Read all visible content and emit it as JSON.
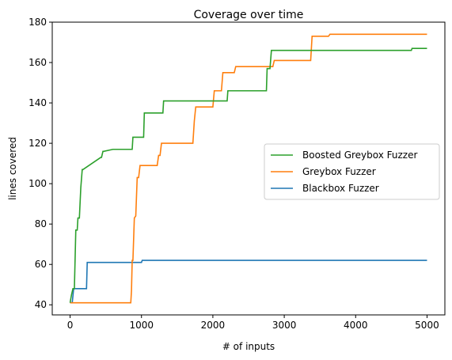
{
  "chart_data": {
    "type": "line",
    "title": "Coverage over time",
    "xlabel": "# of inputs",
    "ylabel": "lines covered",
    "xlim": [
      -250,
      5250
    ],
    "ylim": [
      35,
      180
    ],
    "xticks": [
      0,
      1000,
      2000,
      3000,
      4000,
      5000
    ],
    "yticks": [
      40,
      60,
      80,
      100,
      120,
      140,
      160,
      180
    ],
    "grid": false,
    "legend_position": "center-right",
    "series": [
      {
        "name": "Boosted Greybox Fuzzer",
        "color": "#2ca02c",
        "x": [
          0,
          20,
          40,
          60,
          80,
          100,
          110,
          130,
          150,
          170,
          180,
          430,
          440,
          460,
          470,
          600,
          620,
          870,
          880,
          1030,
          1040,
          1300,
          1310,
          2200,
          2210,
          2750,
          2760,
          2800,
          2820,
          3000,
          3500,
          4000,
          4780,
          4790,
          5000
        ],
        "y": [
          41,
          45,
          48,
          48,
          77,
          77,
          83,
          83,
          98,
          107,
          107,
          113,
          113,
          116,
          116,
          117,
          117,
          117,
          123,
          123,
          135,
          135,
          141,
          141,
          146,
          146,
          157,
          157,
          166,
          166,
          166,
          166,
          166,
          167,
          167
        ]
      },
      {
        "name": "Greybox Fuzzer",
        "color": "#ff7f0e",
        "x": [
          0,
          850,
          860,
          870,
          880,
          900,
          920,
          940,
          960,
          980,
          1000,
          1220,
          1240,
          1260,
          1280,
          1720,
          1740,
          1760,
          2000,
          2020,
          2040,
          2120,
          2140,
          2200,
          2300,
          2320,
          2780,
          2800,
          2840,
          2860,
          3200,
          3220,
          3370,
          3390,
          3620,
          3640,
          5000
        ],
        "y": [
          41,
          41,
          47,
          62,
          62,
          83,
          84,
          103,
          103,
          109,
          109,
          109,
          114,
          114,
          120,
          120,
          131,
          138,
          138,
          146,
          146,
          146,
          155,
          155,
          155,
          158,
          158,
          158,
          158,
          161,
          161,
          161,
          161,
          173,
          173,
          174,
          174
        ]
      },
      {
        "name": "Blackbox Fuzzer",
        "color": "#1f77b4",
        "x": [
          0,
          30,
          50,
          230,
          240,
          1000,
          1010,
          5000
        ],
        "y": [
          41,
          41,
          48,
          48,
          61,
          61,
          62,
          62
        ]
      }
    ]
  }
}
